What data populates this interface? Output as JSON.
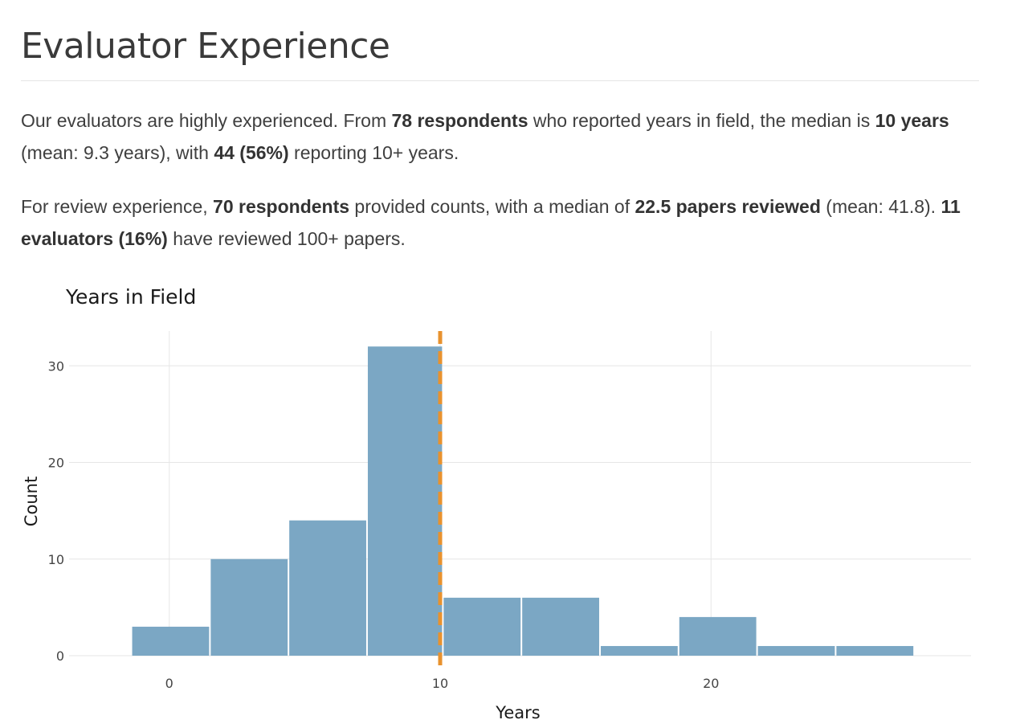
{
  "page": {
    "title": "Evaluator Experience"
  },
  "paragraph1": {
    "t1": "Our evaluators are highly experienced. From ",
    "b1": "78 respondents",
    "t2": " who reported years in field, the median is ",
    "b2": "10 years",
    "t3": " (mean: 9.3 years), with ",
    "b3": "44 (56%)",
    "t4": " reporting 10+ years."
  },
  "paragraph2": {
    "t1": "For review experience, ",
    "b1": "70 respondents",
    "t2": " provided counts, with a median of ",
    "b2": "22.5 papers reviewed",
    "t3": " (mean: 41.8). ",
    "b3": "11 evaluators (16%)",
    "t4": " have reviewed 100+ papers."
  },
  "chart_data": {
    "type": "bar",
    "title": "Years in Field",
    "xlabel": "Years",
    "ylabel": "Count",
    "bins": [
      {
        "x0": -1.4,
        "x1": 1.5,
        "count": 3
      },
      {
        "x0": 1.5,
        "x1": 4.4,
        "count": 10
      },
      {
        "x0": 4.4,
        "x1": 7.3,
        "count": 14
      },
      {
        "x0": 7.3,
        "x1": 10.1,
        "count": 32
      },
      {
        "x0": 10.1,
        "x1": 13.0,
        "count": 6
      },
      {
        "x0": 13.0,
        "x1": 15.9,
        "count": 6
      },
      {
        "x0": 15.9,
        "x1": 18.8,
        "count": 1
      },
      {
        "x0": 18.8,
        "x1": 21.7,
        "count": 4
      },
      {
        "x0": 21.7,
        "x1": 24.6,
        "count": 1
      },
      {
        "x0": 24.6,
        "x1": 27.5,
        "count": 1
      }
    ],
    "xlim": [
      -3.7,
      29.6
    ],
    "ylim": [
      0,
      33.6
    ],
    "x_ticks": [
      0,
      10,
      20
    ],
    "y_ticks": [
      0,
      10,
      20,
      30
    ],
    "median_line": {
      "x": 10,
      "color": "#e8922e",
      "style": "dashed"
    },
    "bar_color": "#7ba7c4",
    "grid": true
  }
}
